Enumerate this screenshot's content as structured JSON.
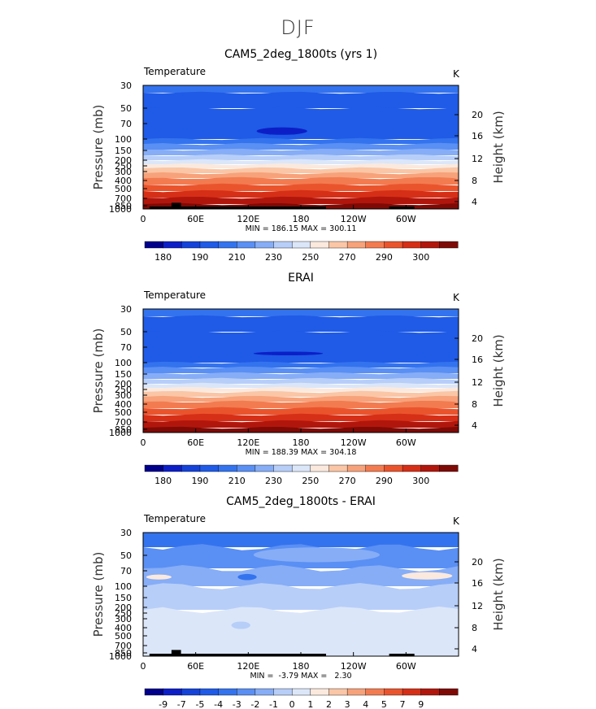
{
  "figure_title": "DJF",
  "chart_data": [
    {
      "type": "heatmap",
      "title": "CAM5_2deg_1800ts (yrs 1)",
      "left_label": "Temperature",
      "right_label": "K",
      "ylabel": "Pressure (mb)",
      "y2label": "Height (km)",
      "x_ticks": [
        "0",
        "60E",
        "120E",
        "180",
        "120W",
        "60W"
      ],
      "y_ticks": [
        "30",
        "50",
        "70",
        "100",
        "150",
        "200",
        "250",
        "300",
        "400",
        "500",
        "700",
        "850",
        "1000"
      ],
      "y2_ticks": [
        "20",
        "16",
        "12",
        "8",
        "4"
      ],
      "stats": "MIN = 186.15   MAX = 300.11",
      "min": 186.15,
      "max": 300.11,
      "colorbar_ticks": [
        "180",
        "190",
        "210",
        "230",
        "250",
        "270",
        "290",
        "300"
      ],
      "colors": [
        "#00008b",
        "#0c1fc7",
        "#1543d9",
        "#1f5be6",
        "#3473ee",
        "#5a8ff4",
        "#86adf6",
        "#b7cef8",
        "#dbe6f9",
        "#fbe9de",
        "#fac6a6",
        "#f7a27a",
        "#f37b50",
        "#ea542d",
        "#d62f17",
        "#b1160c",
        "#7e0a06"
      ],
      "bands": [
        {
          "level": 4,
          "top": 0,
          "bottom": 9
        },
        {
          "level": 3,
          "top": 9,
          "bottom": 28
        },
        {
          "level": 3,
          "top": 28,
          "bottom": 66
        },
        {
          "level": 4,
          "top": 66,
          "bottom": 72
        },
        {
          "level": 5,
          "top": 72,
          "bottom": 79
        },
        {
          "level": 6,
          "top": 79,
          "bottom": 86
        },
        {
          "level": 7,
          "top": 86,
          "bottom": 92
        },
        {
          "level": 8,
          "top": 92,
          "bottom": 97
        },
        {
          "level": 9,
          "top": 97,
          "bottom": 102
        },
        {
          "level": 10,
          "top": 102,
          "bottom": 108
        },
        {
          "level": 11,
          "top": 108,
          "bottom": 114
        },
        {
          "level": 12,
          "top": 114,
          "bottom": 122
        },
        {
          "level": 13,
          "top": 122,
          "bottom": 130
        },
        {
          "level": 14,
          "top": 130,
          "bottom": 138
        },
        {
          "level": 15,
          "top": 138,
          "bottom": 146
        },
        {
          "level": 16,
          "top": 146,
          "bottom": 152
        }
      ],
      "blobs": [
        {
          "level": 1,
          "cx": 0.44,
          "cy": 0.37,
          "rx": 0.08,
          "ry": 0.03
        }
      ],
      "terrain": [
        [
          0.0,
          0.0
        ],
        [
          0.02,
          0.0
        ],
        [
          0.02,
          0.02
        ],
        [
          0.09,
          0.02
        ],
        [
          0.09,
          0.05
        ],
        [
          0.12,
          0.05
        ],
        [
          0.12,
          0.02
        ],
        [
          0.58,
          0.02
        ],
        [
          0.58,
          0.0
        ],
        [
          0.78,
          0.0
        ],
        [
          0.78,
          0.02
        ],
        [
          0.86,
          0.02
        ],
        [
          0.86,
          0.0
        ],
        [
          1.0,
          0.0
        ]
      ]
    },
    {
      "type": "heatmap",
      "title": "ERAI",
      "left_label": "Temperature",
      "right_label": "K",
      "ylabel": "Pressure (mb)",
      "y2label": "Height (km)",
      "x_ticks": [
        "0",
        "60E",
        "120E",
        "180",
        "120W",
        "60W"
      ],
      "y_ticks": [
        "30",
        "50",
        "70",
        "100",
        "150",
        "200",
        "250",
        "300",
        "400",
        "500",
        "700",
        "850",
        "1000"
      ],
      "y2_ticks": [
        "20",
        "16",
        "12",
        "8",
        "4"
      ],
      "stats": "MIN = 188.39   MAX = 304.18",
      "min": 188.39,
      "max": 304.18,
      "colorbar_ticks": [
        "180",
        "190",
        "210",
        "230",
        "250",
        "270",
        "290",
        "300"
      ],
      "colors": [
        "#00008b",
        "#0c1fc7",
        "#1543d9",
        "#1f5be6",
        "#3473ee",
        "#5a8ff4",
        "#86adf6",
        "#b7cef8",
        "#dbe6f9",
        "#fbe9de",
        "#fac6a6",
        "#f7a27a",
        "#f37b50",
        "#ea542d",
        "#d62f17",
        "#b1160c",
        "#7e0a06"
      ],
      "bands": [
        {
          "level": 4,
          "top": 0,
          "bottom": 9
        },
        {
          "level": 3,
          "top": 9,
          "bottom": 28
        },
        {
          "level": 3,
          "top": 28,
          "bottom": 66
        },
        {
          "level": 4,
          "top": 66,
          "bottom": 72
        },
        {
          "level": 5,
          "top": 72,
          "bottom": 79
        },
        {
          "level": 6,
          "top": 79,
          "bottom": 86
        },
        {
          "level": 7,
          "top": 86,
          "bottom": 92
        },
        {
          "level": 8,
          "top": 92,
          "bottom": 97
        },
        {
          "level": 9,
          "top": 97,
          "bottom": 102
        },
        {
          "level": 10,
          "top": 102,
          "bottom": 108
        },
        {
          "level": 11,
          "top": 108,
          "bottom": 114
        },
        {
          "level": 12,
          "top": 114,
          "bottom": 122
        },
        {
          "level": 13,
          "top": 122,
          "bottom": 130
        },
        {
          "level": 14,
          "top": 130,
          "bottom": 138
        },
        {
          "level": 15,
          "top": 138,
          "bottom": 146
        },
        {
          "level": 16,
          "top": 146,
          "bottom": 152
        }
      ],
      "blobs": [
        {
          "level": 1,
          "cx": 0.46,
          "cy": 0.36,
          "rx": 0.11,
          "ry": 0.015
        }
      ],
      "terrain": []
    },
    {
      "type": "heatmap",
      "title": "CAM5_2deg_1800ts - ERAI",
      "left_label": "Temperature",
      "right_label": "K",
      "ylabel": "Pressure (mb)",
      "y2label": "Height (km)",
      "x_ticks": [
        "0",
        "60E",
        "120E",
        "180",
        "120W",
        "60W"
      ],
      "y_ticks": [
        "30",
        "50",
        "70",
        "100",
        "150",
        "200",
        "250",
        "300",
        "400",
        "500",
        "700",
        "850",
        "1000"
      ],
      "y2_ticks": [
        "20",
        "16",
        "12",
        "8",
        "4"
      ],
      "stats": "MIN =  -3.79   MAX =   2.30",
      "min": -3.79,
      "max": 2.3,
      "colorbar_ticks": [
        "-9",
        "-7",
        "-5",
        "-4",
        "-3",
        "-2",
        "-1",
        "0",
        "1",
        "2",
        "3",
        "4",
        "5",
        "7",
        "9"
      ],
      "colors": [
        "#00008b",
        "#0c1fc7",
        "#1543d9",
        "#1f5be6",
        "#3473ee",
        "#5a8ff4",
        "#86adf6",
        "#b7cef8",
        "#dbe6f9",
        "#fbe9de",
        "#fac6a6",
        "#f7a27a",
        "#f37b50",
        "#ea542d",
        "#d62f17",
        "#b1160c",
        "#7e0a06"
      ],
      "bands": [
        {
          "level": 4,
          "top": 0,
          "bottom": 18
        },
        {
          "level": 5,
          "top": 18,
          "bottom": 44
        },
        {
          "level": 6,
          "top": 44,
          "bottom": 66
        },
        {
          "level": 7,
          "top": 66,
          "bottom": 95
        },
        {
          "level": 8,
          "top": 95,
          "bottom": 152
        }
      ],
      "blobs": [
        {
          "level": 9,
          "cx": 0.05,
          "cy": 0.36,
          "rx": 0.04,
          "ry": 0.02
        },
        {
          "level": 9,
          "cx": 0.9,
          "cy": 0.35,
          "rx": 0.08,
          "ry": 0.03
        },
        {
          "level": 4,
          "cx": 0.33,
          "cy": 0.36,
          "rx": 0.03,
          "ry": 0.025
        },
        {
          "level": 7,
          "cx": 0.31,
          "cy": 0.75,
          "rx": 0.03,
          "ry": 0.03
        },
        {
          "level": 6,
          "cx": 0.55,
          "cy": 0.18,
          "rx": 0.2,
          "ry": 0.06
        }
      ],
      "terrain": [
        [
          0.0,
          0.0
        ],
        [
          0.02,
          0.0
        ],
        [
          0.02,
          0.02
        ],
        [
          0.09,
          0.02
        ],
        [
          0.09,
          0.05
        ],
        [
          0.12,
          0.05
        ],
        [
          0.12,
          0.02
        ],
        [
          0.58,
          0.02
        ],
        [
          0.58,
          0.0
        ],
        [
          0.78,
          0.0
        ],
        [
          0.78,
          0.02
        ],
        [
          0.86,
          0.02
        ],
        [
          0.86,
          0.0
        ],
        [
          1.0,
          0.0
        ]
      ]
    }
  ]
}
